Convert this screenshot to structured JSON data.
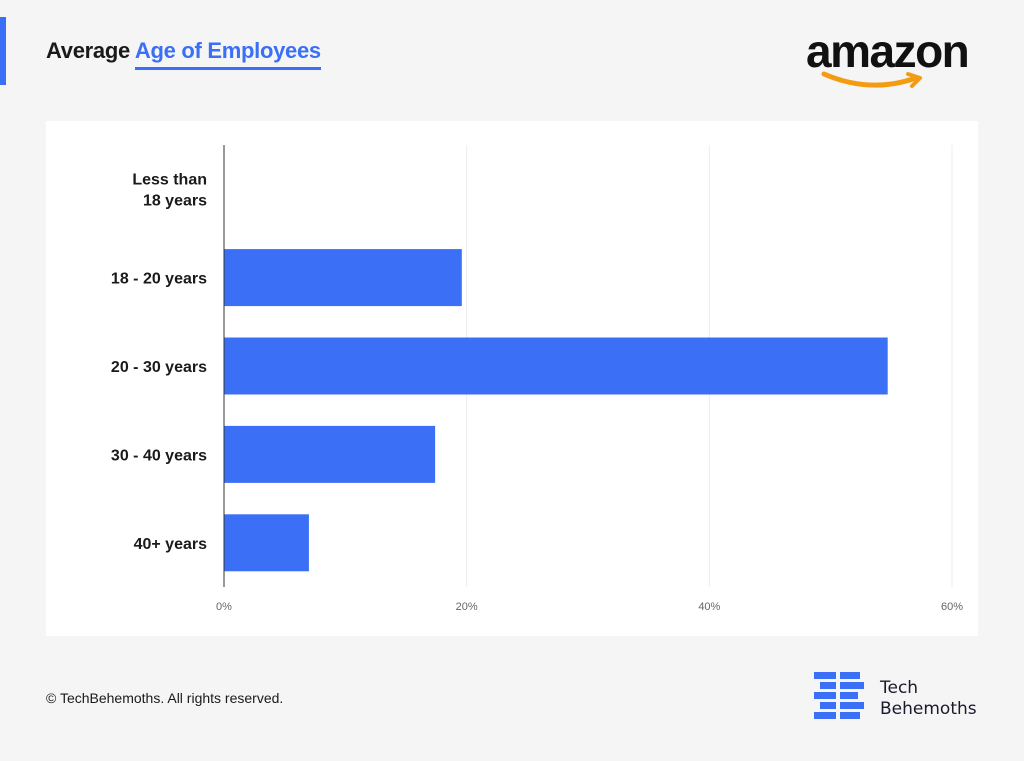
{
  "header": {
    "title_prefix": "Average",
    "title_highlight": "Age of Employees",
    "brand_logo_text": "amazon",
    "accent_color": "#3b6ff5"
  },
  "chart_data": {
    "type": "bar",
    "orientation": "horizontal",
    "categories": [
      "Less than\n18 years",
      "18 - 20 years",
      "20 - 30 years",
      "30 - 40 years",
      "40+ years"
    ],
    "values": [
      0,
      19.6,
      54.7,
      17.4,
      7
    ],
    "value_unit": "%",
    "xlim": [
      0,
      60
    ],
    "xticks": [
      "0%",
      "20%",
      "40%",
      "60%"
    ],
    "grid": true,
    "bar_color": "#3b6ff5"
  },
  "footer": {
    "copyright": "© TechBehemoths. All rights reserved.",
    "logo_line1": "Tech",
    "logo_line2": "Behemoths"
  }
}
